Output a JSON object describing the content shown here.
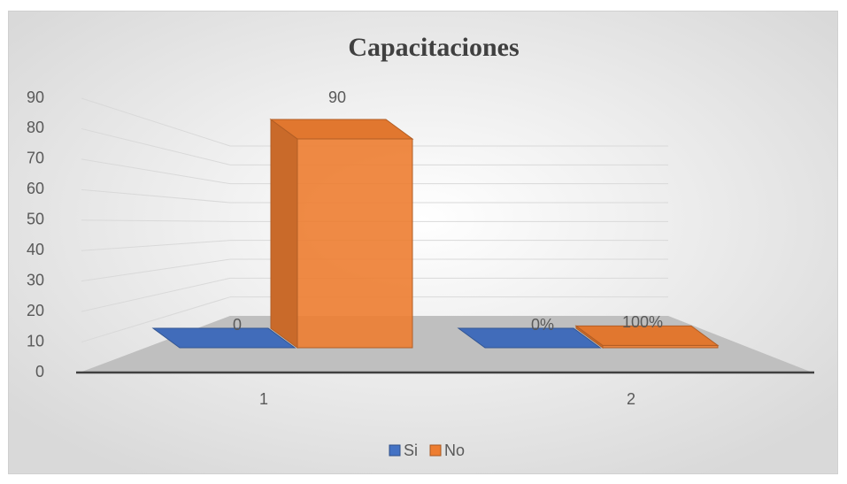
{
  "chart_data": {
    "type": "bar3d",
    "title": "Capacitaciones",
    "categories": [
      "1",
      "2"
    ],
    "series": [
      {
        "name": "Si",
        "color": "#4472c4",
        "values": [
          0,
          0
        ],
        "value_labels": [
          "0",
          "0%"
        ]
      },
      {
        "name": "No",
        "color": "#ed7d31",
        "values": [
          90,
          1
        ],
        "value_labels": [
          "90",
          "100%"
        ]
      }
    ],
    "ylim": [
      0,
      90
    ],
    "yticks": [
      0,
      10,
      20,
      30,
      40,
      50,
      60,
      70,
      80,
      90
    ],
    "grid": true,
    "legend": "bottom"
  }
}
